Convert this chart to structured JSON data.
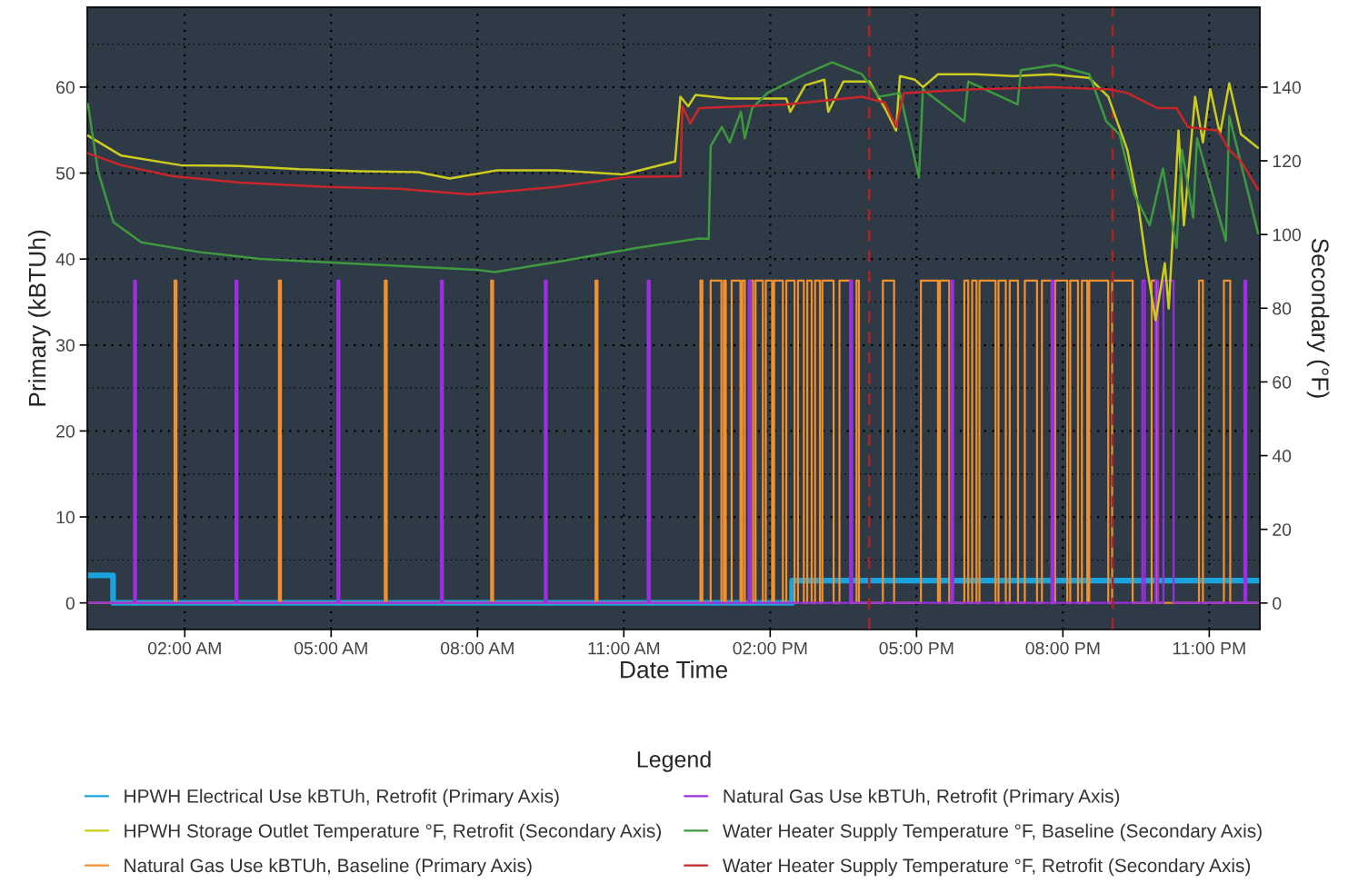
{
  "chart_data": {
    "type": "line",
    "xlabel": "Date Time",
    "ylabel": "Primary (kBTUh)",
    "y2label": "Secondary (°F)",
    "legend_title": "Legend",
    "xlim": [
      0,
      24.04
    ],
    "xticks": [
      {
        "value": 2,
        "label": "02:00 AM"
      },
      {
        "value": 5,
        "label": "05:00 AM"
      },
      {
        "value": 8,
        "label": "08:00 AM"
      },
      {
        "value": 11,
        "label": "11:00 AM"
      },
      {
        "value": 14,
        "label": "02:00 PM"
      },
      {
        "value": 17,
        "label": "05:00 PM"
      },
      {
        "value": 20,
        "label": "08:00 PM"
      },
      {
        "value": 23,
        "label": "11:00 PM"
      }
    ],
    "ylim": [
      -3.1,
      69.3
    ],
    "yticks": [
      0,
      10,
      20,
      30,
      40,
      50,
      60
    ],
    "y2lim": [
      -7.2,
      161.7
    ],
    "y2ticks": [
      0,
      20,
      40,
      60,
      80,
      100,
      120,
      140
    ],
    "grid": true,
    "legend": "bottom",
    "ref_lines": [
      {
        "axis": "x",
        "value": 16.03,
        "color": "#b22222",
        "line_style": "dashed"
      },
      {
        "axis": "x",
        "value": 21.02,
        "color": "#b22222",
        "line_style": "dashed"
      }
    ],
    "series": [
      {
        "name": "HPWH Electrical Use kBTUh, Retrofit (Primary Axis)",
        "color": "#1aa3dc",
        "type": "step",
        "x": [
          0,
          0.53,
          14.45,
          24.0
        ],
        "values": [
          3.2,
          0,
          2.6,
          2.6
        ]
      },
      {
        "name": "HPWH Storage Outlet Temperature °F, Retrofit (Secondary Axis)",
        "color": "#cccc1e",
        "axis": "y2",
        "x": [
          0.015,
          0.7,
          1.92,
          3.13,
          4.35,
          5.56,
          6.78,
          7.43,
          8.4,
          9.61,
          10.99,
          12.05,
          12.16,
          12.32,
          12.47,
          13.17,
          14.33,
          14.41,
          14.72,
          15.11,
          15.19,
          15.5,
          16.04,
          16.35,
          16.58,
          16.66,
          16.97,
          17.13,
          17.44,
          18.21,
          18.99,
          19.76,
          20.54,
          20.93,
          21.32,
          21.55,
          21.71,
          21.9,
          22.09,
          22.17,
          22.37,
          22.48,
          22.71,
          22.87,
          23.02,
          23.22,
          23.41,
          23.65,
          24.0
        ],
        "values": [
          126.8,
          121.4,
          118.8,
          118.6,
          117.7,
          117.2,
          116.9,
          115.2,
          117.4,
          117.4,
          116.3,
          119.8,
          137.4,
          134.8,
          137.9,
          136.9,
          136.9,
          133.3,
          140.5,
          142,
          133.3,
          141.5,
          141.5,
          134.3,
          128.2,
          143,
          142,
          140,
          143.5,
          143.5,
          143,
          143.5,
          142.5,
          137.4,
          123,
          107.6,
          92.2,
          76.8,
          92.2,
          79.9,
          128.2,
          102.5,
          137.4,
          125,
          139.5,
          127.2,
          141,
          127.2,
          123.5
        ]
      },
      {
        "name": "Natural Gas Use kBTUh, Baseline (Primary Axis)",
        "color": "#f0902f",
        "type": "step",
        "x": [
          0,
          1.79,
          1.83,
          3.93,
          3.97,
          6.1,
          6.14,
          8.28,
          8.32,
          10.42,
          10.46,
          12.57,
          12.61,
          12.78,
          13.0,
          13.05,
          13.09,
          13.21,
          13.39,
          13.43,
          13.48,
          13.6,
          13.65,
          13.7,
          13.85,
          13.91,
          14.04,
          14.08,
          14.26,
          14.33,
          14.5,
          14.57,
          14.69,
          14.76,
          14.85,
          14.92,
          15.02,
          15.07,
          15.3,
          15.42,
          15.65,
          15.77,
          15.82,
          16.31,
          16.54,
          17.09,
          17.44,
          17.48,
          17.67,
          17.98,
          18.06,
          18.14,
          18.23,
          18.29,
          18.62,
          18.68,
          18.83,
          18.91,
          19.08,
          19.22,
          19.47,
          19.57,
          19.77,
          19.84,
          20.09,
          20.15,
          20.31,
          20.39,
          20.5,
          20.54,
          20.93,
          21.01,
          21.43,
          21.82,
          21.92,
          22.79,
          22.87,
          23.3,
          23.43,
          24.0
        ],
        "values": [
          0,
          37.5,
          0,
          37.5,
          0,
          37.5,
          0,
          37.5,
          0,
          37.5,
          0,
          37.5,
          0,
          37.5,
          0,
          37.5,
          0,
          37.5,
          0,
          37.5,
          0,
          37.5,
          0,
          37.5,
          0,
          37.5,
          0,
          37.5,
          0,
          37.5,
          0,
          37.5,
          0,
          37.5,
          0,
          37.5,
          0,
          37.5,
          0,
          37.5,
          0,
          37.5,
          0,
          37.5,
          0,
          37.5,
          0,
          37.5,
          0,
          37.5,
          0,
          37.5,
          0,
          37.5,
          0,
          37.5,
          0,
          37.5,
          0,
          37.5,
          0,
          37.5,
          0,
          37.5,
          0,
          37.5,
          0,
          37.5,
          0,
          37.5,
          0,
          37.5,
          0,
          37.5,
          0,
          37.5,
          0,
          37.5,
          0,
          0
        ]
      },
      {
        "name": "Natural Gas Use kBTUh, Retrofit (Primary Axis)",
        "color": "#9b30e0",
        "type": "step",
        "x": [
          0,
          0.96,
          1.0,
          3.04,
          3.08,
          5.13,
          5.17,
          7.25,
          7.29,
          9.38,
          9.42,
          11.49,
          11.53,
          13.56,
          13.6,
          15.64,
          15.68,
          17.71,
          17.75,
          19.77,
          19.81,
          21.63,
          21.68,
          21.9,
          21.95,
          22.06,
          22.27,
          23.72,
          23.76,
          24.0
        ],
        "values": [
          0,
          37.5,
          0,
          37.5,
          0,
          37.5,
          0,
          37.5,
          0,
          37.5,
          0,
          37.5,
          0,
          37.5,
          0,
          37.5,
          0,
          37.5,
          0,
          37.5,
          0,
          37.5,
          0,
          37.5,
          0,
          37.5,
          0,
          37.5,
          0,
          0
        ]
      },
      {
        "name": "Water Heater Supply Temperature °F, Baseline (Secondary Axis)",
        "color": "#3f9a3f",
        "axis": "y2",
        "x": [
          0.015,
          0.22,
          0.54,
          1.11,
          2.32,
          3.54,
          5.56,
          7.99,
          8.35,
          9.61,
          11.23,
          12.52,
          12.74,
          12.78,
          13.01,
          13.17,
          13.4,
          13.48,
          13.63,
          13.94,
          14.72,
          15.27,
          15.88,
          16.23,
          16.66,
          17.05,
          17.13,
          17.98,
          18.06,
          19.07,
          19.14,
          19.84,
          20.54,
          20.89,
          21.16,
          21.47,
          21.78,
          22.05,
          22.33,
          22.44,
          22.67,
          22.75,
          23.34,
          23.41,
          24.0
        ],
        "values": [
          135.4,
          117.2,
          103.3,
          97.9,
          95.2,
          93.4,
          92,
          90.4,
          89.8,
          92.5,
          96.3,
          98.9,
          98.8,
          124,
          129.2,
          125,
          133.3,
          126.1,
          134.3,
          138.4,
          143.5,
          146.7,
          143.5,
          137.4,
          138.4,
          115.4,
          139.4,
          130.7,
          141.5,
          135.3,
          144.6,
          146,
          143.5,
          130.7,
          127.2,
          110.7,
          102.5,
          117.9,
          96.4,
          123,
          104.6,
          126.1,
          98.3,
          132.2,
          100.4
        ]
      },
      {
        "name": "Water Heater Supply Temperature °F, Retrofit (Secondary Axis)",
        "color": "#c8262b",
        "axis": "y2",
        "x": [
          0.015,
          0.7,
          1.75,
          3.13,
          4.92,
          6.37,
          7.83,
          8.48,
          9.61,
          11.07,
          12.16,
          12.2,
          12.36,
          12.55,
          14.33,
          15.88,
          16.35,
          16.58,
          16.74,
          18.21,
          19.76,
          20.93,
          21.32,
          21.94,
          22.33,
          22.56,
          23.18,
          23.41,
          23.65,
          24.0
        ],
        "values": [
          122,
          118.8,
          115.8,
          114.1,
          112.9,
          112.4,
          110.9,
          111.6,
          112.9,
          115.6,
          115.8,
          134.8,
          130.2,
          134.3,
          135.3,
          137.4,
          135.8,
          129.2,
          138.4,
          139.4,
          140,
          139.4,
          138.4,
          134.3,
          134.3,
          129.2,
          128.2,
          123,
          119.9,
          112.2
        ]
      }
    ]
  }
}
